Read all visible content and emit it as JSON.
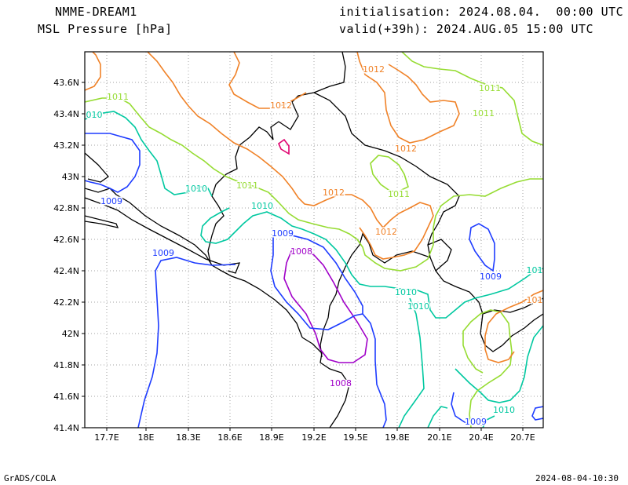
{
  "header": {
    "model": "NMME-DREAM1",
    "field": "MSL Pressure [hPa]",
    "initialisation": "initialisation: 2024.08.04.  00:00 UTC",
    "valid": "valid(+39h): 2024.AUG.05 15:00 UTC"
  },
  "footer": {
    "credit": "GrADS/COLA",
    "timestamp": "2024-08-04-10:30"
  },
  "map": {
    "lat_ticks": [
      "43.6N",
      "43.4N",
      "43.2N",
      "43N",
      "42.8N",
      "42.6N",
      "42.4N",
      "42.2N",
      "42N",
      "41.8N",
      "41.6N",
      "41.4N"
    ],
    "lon_ticks": [
      "17.7E",
      "18E",
      "18.3E",
      "18.6E",
      "18.9E",
      "19.2E",
      "19.5E",
      "19.8E",
      "20.1E",
      "20.4E",
      "20.7E"
    ],
    "colors": {
      "1008": "#a000c8",
      "1009": "#1e3cff",
      "1010": "#00c8a0",
      "1011": "#96dc32",
      "1012": "#f08228",
      "1013": "#e0006e",
      "coast": "#000000",
      "grid": "#a0a0a0"
    },
    "contour_labels": [
      {
        "text": "1012",
        "level": "1012"
      },
      {
        "text": "1012",
        "level": "1012"
      },
      {
        "text": "1012",
        "level": "1012"
      },
      {
        "text": "1012",
        "level": "1012"
      },
      {
        "text": "1012",
        "level": "1012"
      },
      {
        "text": "1011",
        "level": "1011"
      },
      {
        "text": "1011",
        "level": "1011"
      },
      {
        "text": "1011",
        "level": "1011"
      },
      {
        "text": "1011",
        "level": "1011"
      },
      {
        "text": "1011",
        "level": "1011"
      },
      {
        "text": "010",
        "level": "1010"
      },
      {
        "text": "1010",
        "level": "1010"
      },
      {
        "text": "1010",
        "level": "1010"
      },
      {
        "text": "1010",
        "level": "1010"
      },
      {
        "text": "1010",
        "level": "1010"
      },
      {
        "text": "1010",
        "level": "1010"
      },
      {
        "text": "1009",
        "level": "1009"
      },
      {
        "text": "1009",
        "level": "1009"
      },
      {
        "text": "1009",
        "level": "1009"
      },
      {
        "text": "1009",
        "level": "1009"
      },
      {
        "text": "1009",
        "level": "1009"
      },
      {
        "text": "1008",
        "level": "1008"
      },
      {
        "text": "1008",
        "level": "1008"
      },
      {
        "text": "101",
        "level": "1012"
      },
      {
        "text": "101",
        "level": "1010"
      }
    ]
  }
}
